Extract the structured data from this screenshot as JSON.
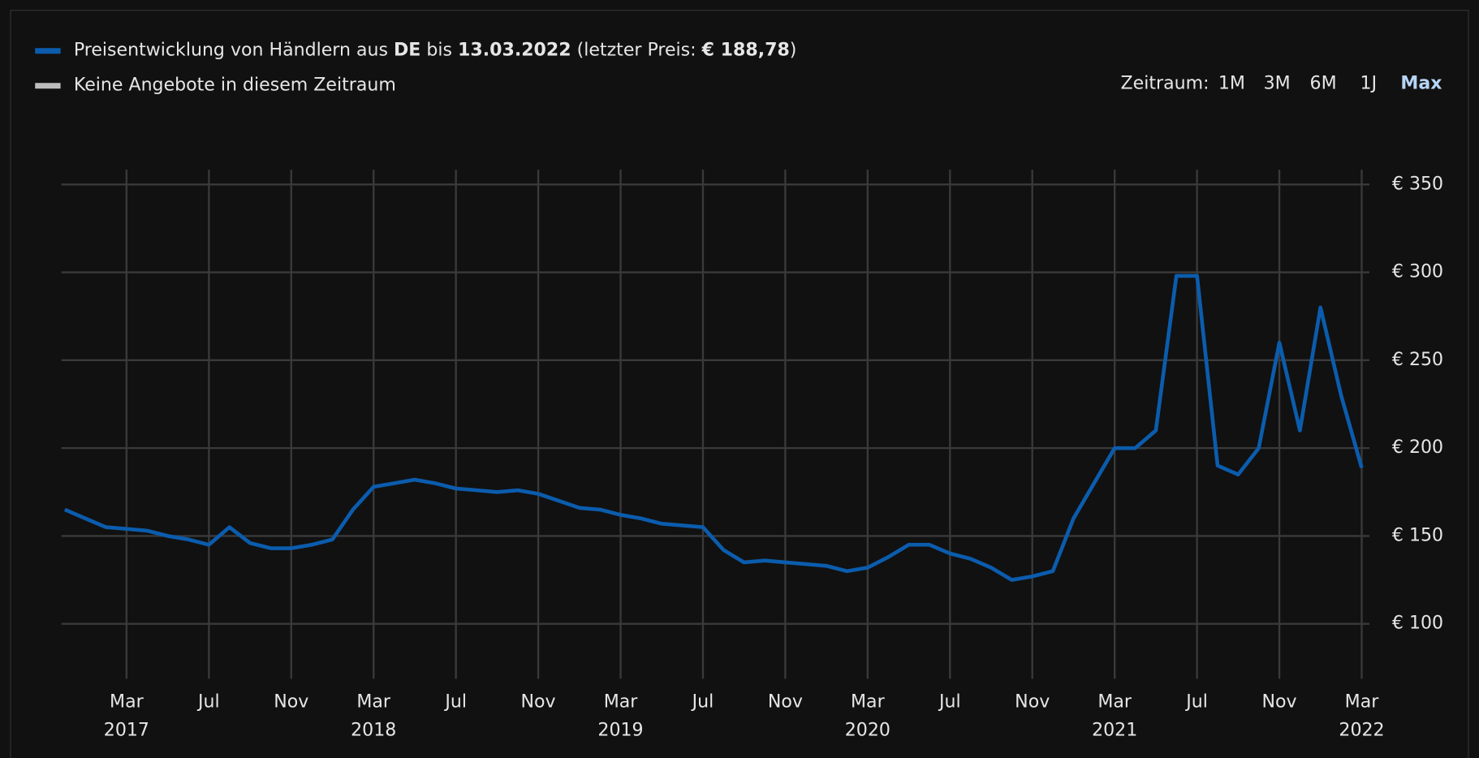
{
  "chart_data": {
    "type": "line",
    "legend": [
      {
        "parts": [
          "Preisentwicklung von Händlern aus ",
          "DE",
          " bis ",
          "13.03.2022",
          " (letzter Preis: ",
          "€ 188,78",
          ")"
        ],
        "color": "#0b5cad"
      },
      {
        "parts": [
          "Keine Angebote in diesem Zeitraum"
        ],
        "color": "#bdbdbd"
      }
    ],
    "range_label": "Zeitraum:",
    "range_options": [
      "1M",
      "3M",
      "6M",
      "1J",
      "Max"
    ],
    "range_active": "Max",
    "x": [
      "2016-12",
      "2017-01",
      "2017-02",
      "2017-03",
      "2017-04",
      "2017-05",
      "2017-06",
      "2017-07",
      "2017-08",
      "2017-09",
      "2017-10",
      "2017-11",
      "2017-12",
      "2018-01",
      "2018-02",
      "2018-03",
      "2018-04",
      "2018-05",
      "2018-06",
      "2018-07",
      "2018-08",
      "2018-09",
      "2018-10",
      "2018-11",
      "2018-12",
      "2019-01",
      "2019-02",
      "2019-03",
      "2019-04",
      "2019-05",
      "2019-06",
      "2019-07",
      "2019-08",
      "2019-09",
      "2019-10",
      "2019-11",
      "2019-12",
      "2020-01",
      "2020-02",
      "2020-03",
      "2020-04",
      "2020-05",
      "2020-06",
      "2020-07",
      "2020-08",
      "2020-09",
      "2020-10",
      "2020-11",
      "2020-12",
      "2021-01",
      "2021-02",
      "2021-03",
      "2021-04",
      "2021-05",
      "2021-06",
      "2021-07",
      "2021-08",
      "2021-09",
      "2021-10",
      "2021-11",
      "2021-12",
      "2022-01",
      "2022-02",
      "2022-03"
    ],
    "series": [
      {
        "name": "Preisentwicklung",
        "color": "#0b5cad",
        "values": [
          165,
          160,
          155,
          154,
          153,
          150,
          148,
          145,
          155,
          146,
          143,
          143,
          145,
          148,
          165,
          178,
          180,
          182,
          180,
          177,
          176,
          175,
          176,
          174,
          170,
          166,
          165,
          162,
          160,
          157,
          156,
          155,
          142,
          135,
          136,
          135,
          134,
          133,
          130,
          132,
          138,
          145,
          145,
          140,
          137,
          132,
          125,
          127,
          130,
          160,
          180,
          200,
          200,
          210,
          298,
          298,
          190,
          185,
          200,
          260,
          210,
          280,
          230,
          188.78
        ]
      }
    ],
    "xlim": [
      "2016-12",
      "2022-03"
    ],
    "xticks": [
      {
        "value": "2017-03",
        "label": "Mar"
      },
      {
        "value": "2017-07",
        "label": "Jul"
      },
      {
        "value": "2017-11",
        "label": "Nov"
      },
      {
        "value": "2018-03",
        "label": "Mar"
      },
      {
        "value": "2018-07",
        "label": "Jul"
      },
      {
        "value": "2018-11",
        "label": "Nov"
      },
      {
        "value": "2019-03",
        "label": "Mar"
      },
      {
        "value": "2019-07",
        "label": "Jul"
      },
      {
        "value": "2019-11",
        "label": "Nov"
      },
      {
        "value": "2020-03",
        "label": "Mar"
      },
      {
        "value": "2020-07",
        "label": "Jul"
      },
      {
        "value": "2020-11",
        "label": "Nov"
      },
      {
        "value": "2021-03",
        "label": "Mar"
      },
      {
        "value": "2021-07",
        "label": "Jul"
      },
      {
        "value": "2021-11",
        "label": "Nov"
      },
      {
        "value": "2022-03",
        "label": "Mar"
      }
    ],
    "xtick_years": [
      {
        "value": "2017-03",
        "label": "2017"
      },
      {
        "value": "2018-03",
        "label": "2018"
      },
      {
        "value": "2019-03",
        "label": "2019"
      },
      {
        "value": "2020-03",
        "label": "2020"
      },
      {
        "value": "2021-03",
        "label": "2021"
      },
      {
        "value": "2022-03",
        "label": "2022"
      }
    ],
    "ylim": [
      80,
      360
    ],
    "yticks": [
      {
        "value": 100,
        "label": "€ 100"
      },
      {
        "value": 150,
        "label": "€ 150"
      },
      {
        "value": 200,
        "label": "€ 200"
      },
      {
        "value": 250,
        "label": "€ 250"
      },
      {
        "value": 300,
        "label": "€ 300"
      },
      {
        "value": 350,
        "label": "€ 350"
      }
    ],
    "grid": true
  }
}
